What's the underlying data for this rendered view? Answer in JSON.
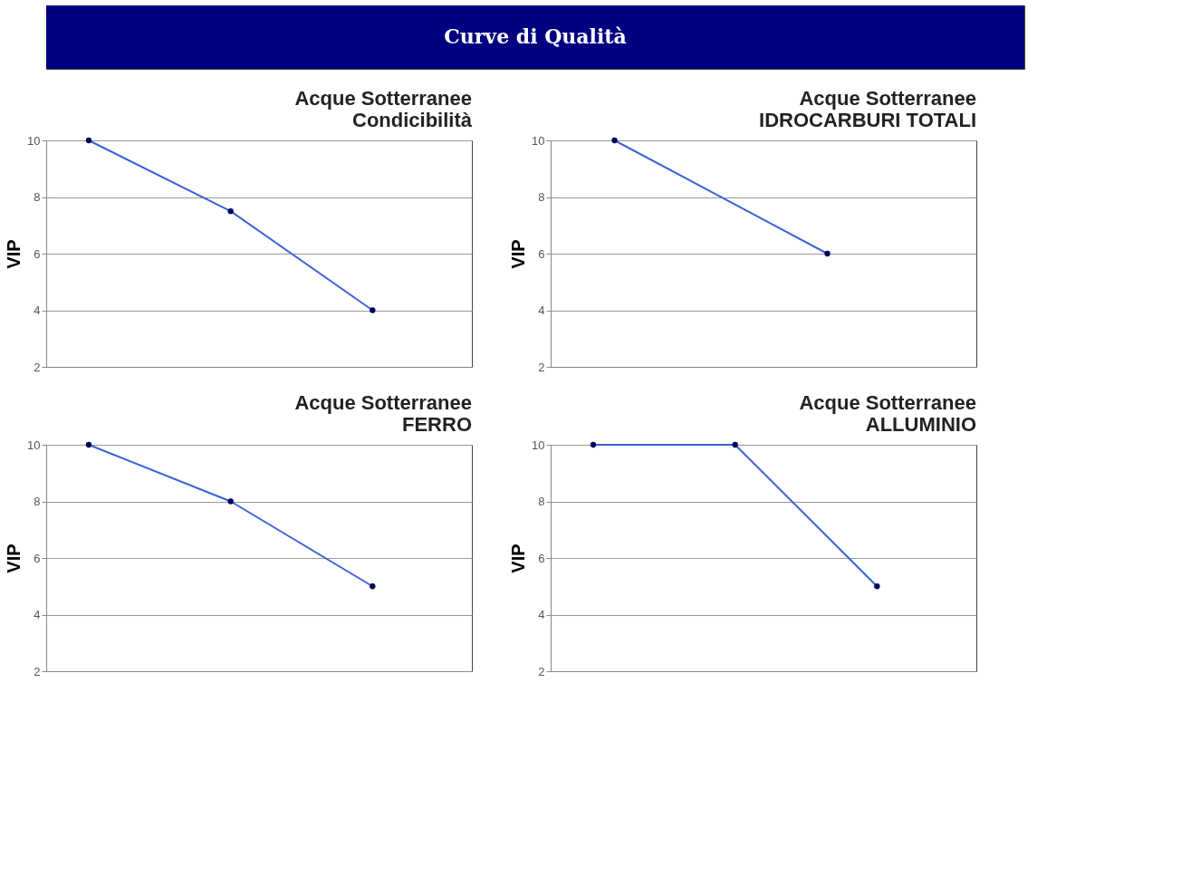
{
  "chart_data": [
    {
      "type": "other",
      "title": "Curve di Qualità"
    },
    {
      "type": "line",
      "title": "Acque Sotterranee Condicibilità",
      "ylabel": "VIP",
      "categories": [
        null,
        null,
        null
      ],
      "series": [
        {
          "color": "#3a62d6",
          "values": [
            10,
            7.5,
            4
          ]
        }
      ],
      "ylim": [
        2,
        10
      ],
      "yticks": [
        2,
        4,
        6,
        8,
        10
      ],
      "grid": "y",
      "marker": "circle",
      "tick_labels": "y"
    },
    {
      "type": "line",
      "title": "Acque Sotterranee IDROCARBURI TOTALI",
      "ylabel": "VIP",
      "categories": [
        null,
        null
      ],
      "series": [
        {
          "color": "#3a62d6",
          "values": [
            10,
            6
          ]
        }
      ],
      "ylim": [
        2,
        10
      ],
      "yticks": [
        2,
        4,
        6,
        8,
        10
      ],
      "grid": "y",
      "marker": "circle",
      "tick_labels": "y"
    },
    {
      "type": "line",
      "title": "Acque Sotterranee FERRO",
      "ylabel": "VIP",
      "categories": [
        null,
        null,
        null
      ],
      "series": [
        {
          "color": "#3a62d6",
          "values": [
            10,
            8,
            5
          ]
        }
      ],
      "ylim": [
        2,
        10
      ],
      "yticks": [
        2,
        4,
        6,
        8,
        10
      ],
      "grid": "y",
      "marker": "circle",
      "tick_labels": "y"
    },
    {
      "type": "line",
      "title": "Acque Sotterranee ALLUMINIO",
      "ylabel": "VIP",
      "categories": [
        null,
        null,
        null
      ],
      "series": [
        {
          "color": "#3a62d6",
          "values": [
            10,
            10,
            5
          ]
        }
      ],
      "ylim": [
        2,
        10
      ],
      "yticks": [
        2,
        4,
        6,
        8,
        10
      ],
      "grid": "y",
      "marker": "circle",
      "tick_labels": "y"
    }
  ]
}
